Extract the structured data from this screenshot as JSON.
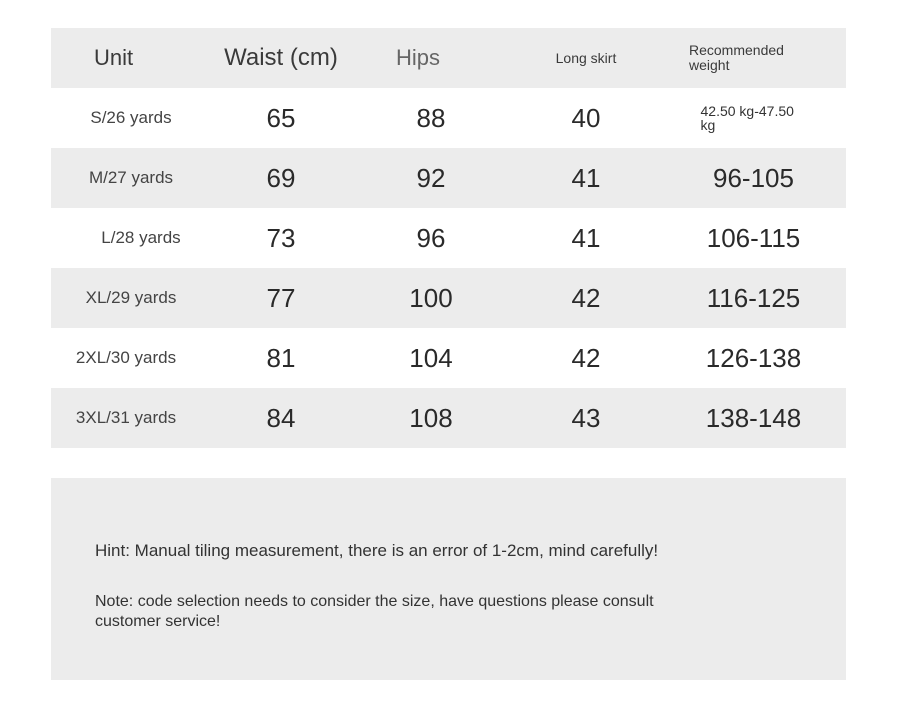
{
  "header": {
    "unit": "Unit",
    "waist": "Waist (cm)",
    "hips": "Hips",
    "long_skirt": "Long skirt",
    "weight": "Recommended weight"
  },
  "rows": [
    {
      "unit": "S/26 yards",
      "waist": "65",
      "hips": "88",
      "long_skirt": "40",
      "weight": "42.50 kg-47.50 kg"
    },
    {
      "unit": "M/27 yards",
      "waist": "69",
      "hips": "92",
      "long_skirt": "41",
      "weight": "96-105"
    },
    {
      "unit": "L/28 yards",
      "waist": "73",
      "hips": "96",
      "long_skirt": "41",
      "weight": "106-115"
    },
    {
      "unit": "XL/29 yards",
      "waist": "77",
      "hips": "100",
      "long_skirt": "42",
      "weight": "116-125"
    },
    {
      "unit": "2XL/30 yards",
      "waist": "81",
      "hips": "104",
      "long_skirt": "42",
      "weight": "126-138"
    },
    {
      "unit": "3XL/31 yards",
      "waist": "84",
      "hips": "108",
      "long_skirt": "43",
      "weight": "138-148"
    }
  ],
  "notes": {
    "hint": "Hint: Manual tiling measurement, there is an error of 1-2cm, mind carefully!",
    "note": "Note: code selection needs to consider the size, have questions please consult customer service!"
  },
  "colors": {
    "shaded_row": "#ececec",
    "text": "#333333"
  }
}
